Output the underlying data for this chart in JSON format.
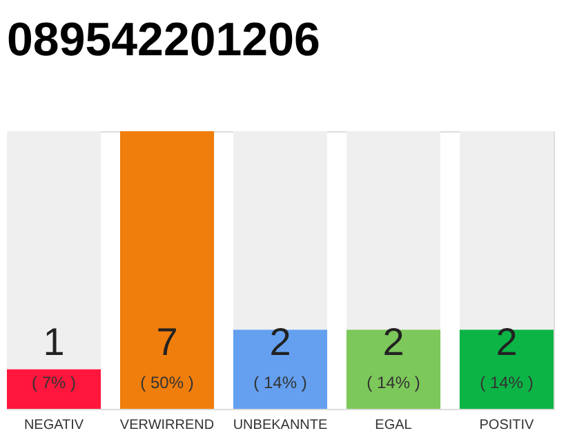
{
  "chart_data": {
    "type": "bar",
    "title": "089542201206",
    "categories": [
      "NEGATIV",
      "VERWIRREND",
      "UNBEKANNTE",
      "EGAL",
      "POSITIV"
    ],
    "stacked": true,
    "ylim": [
      0,
      7
    ],
    "tick_labels": "x",
    "series": [
      {
        "colors": [
          "#ff163c",
          "#f07e0c",
          "#64a0ef",
          "#7cc85a",
          "#0cb446"
        ],
        "values": [
          1,
          7,
          2,
          2,
          2
        ],
        "value_labels": [
          "1",
          "7",
          "2",
          "2",
          "2"
        ]
      },
      {
        "color": "#efefef",
        "values": [
          6,
          0,
          5,
          5,
          5
        ]
      }
    ],
    "annotations": [
      "( 7% )",
      "( 50% )",
      "( 14% )",
      "( 14% )",
      "( 14% )"
    ]
  }
}
